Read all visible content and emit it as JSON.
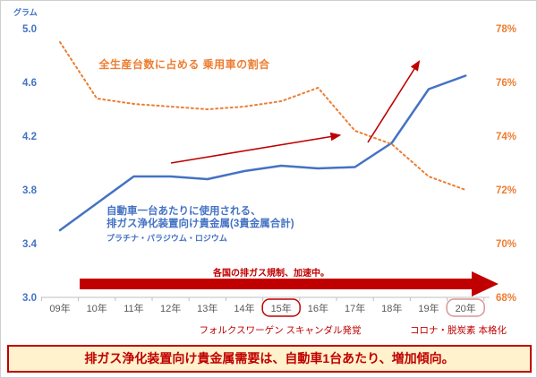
{
  "colors": {
    "blue": "#4472C4",
    "orange": "#ED7D31",
    "red": "#C00000",
    "axis_gray": "#BFBFBF",
    "label_gray": "#595959",
    "banner_bg": "#FFF2CC",
    "highlight_light_red": "#D99694"
  },
  "unit_label": "グラム",
  "chart_data": {
    "type": "line",
    "categories": [
      "09年",
      "10年",
      "11年",
      "12年",
      "13年",
      "14年",
      "15年",
      "16年",
      "17年",
      "18年",
      "19年",
      "20年"
    ],
    "series": [
      {
        "name": "自動車一台あたりに使用される、排ガス浄化装置向け貴金属(3貴金属合計) プラチナ・パラジウム・ロジウム",
        "axis": "left",
        "unit": "グラム",
        "style": "solid",
        "color": "#4472C4",
        "values": [
          3.5,
          3.7,
          3.9,
          3.9,
          3.88,
          3.94,
          3.98,
          3.96,
          3.97,
          4.15,
          4.55,
          4.65
        ]
      },
      {
        "name": "全生産台数に占める 乗用車の割合",
        "axis": "right",
        "unit": "%",
        "style": "dotted",
        "color": "#ED7D31",
        "values": [
          77.5,
          75.4,
          75.2,
          75.1,
          75.0,
          75.1,
          75.3,
          75.8,
          74.2,
          73.7,
          72.5,
          72.0
        ]
      }
    ],
    "y_left": {
      "min": 3.0,
      "max": 5.0,
      "ticks": [
        5.0,
        4.6,
        4.2,
        3.8,
        3.4,
        3.0
      ],
      "tick_labels": [
        "5.0",
        "4.6",
        "4.2",
        "3.8",
        "3.4",
        "3.0"
      ]
    },
    "y_right": {
      "min": 68,
      "max": 78,
      "ticks": [
        78,
        76,
        74,
        72,
        70,
        68
      ],
      "tick_labels": [
        "78%",
        "76%",
        "74%",
        "72%",
        "70%",
        "68%"
      ]
    },
    "grid": "off",
    "highlights": [
      {
        "category": "15年",
        "color": "#C00000"
      },
      {
        "category": "20年",
        "color": "#D99694"
      }
    ]
  },
  "labels": {
    "orange_series_title": "全生産台数に占める 乗用車の割合",
    "blue_series_line1": "自動車一台あたりに使用される、",
    "blue_series_line2": "排ガス浄化装置向け貴金属(3貴金属合計)",
    "blue_series_line3": "プラチナ・パラジウム・ロジウム",
    "big_arrow_label": "各国の排ガス規制、加速中。",
    "vw_note": "フォルクスワーゲン スキャンダル発覚",
    "corona_note": "コロナ・脱炭素 本格化"
  },
  "banner": {
    "text": "排ガス浄化装置向け貴金属需要は、自動車1台あたり、増加傾向。"
  }
}
